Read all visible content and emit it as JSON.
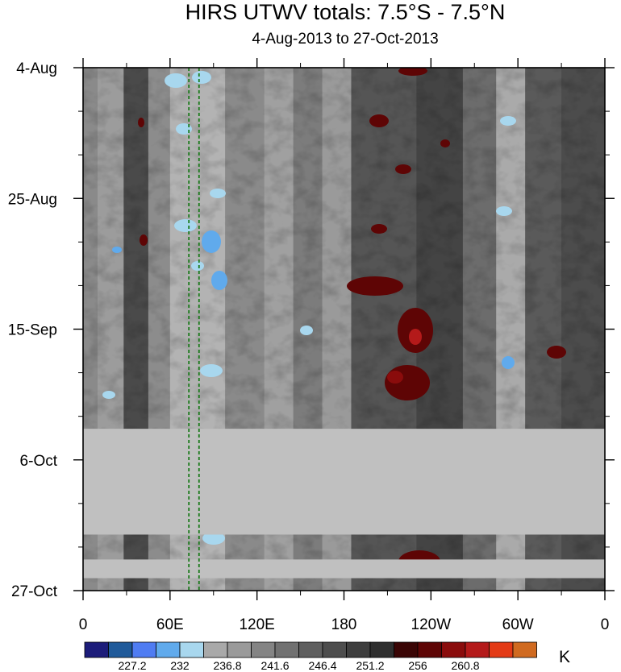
{
  "chart_data": {
    "type": "heatmap",
    "title": "HIRS UTWV totals: 7.5°S - 7.5°N",
    "subtitle": "4-Aug-2013 to 27-Oct-2013",
    "x_ticks": [
      {
        "lon": 0,
        "label": "0"
      },
      {
        "lon": 60,
        "label": "60E"
      },
      {
        "lon": 120,
        "label": "120E"
      },
      {
        "lon": 180,
        "label": "180"
      },
      {
        "lon": 240,
        "label": "120W"
      },
      {
        "lon": 300,
        "label": "60W"
      },
      {
        "lon": 360,
        "label": "0"
      }
    ],
    "xlim": [
      0,
      360
    ],
    "y_ticks": [
      {
        "day": 0,
        "label": "4-Aug"
      },
      {
        "day": 21,
        "label": "25-Aug"
      },
      {
        "day": 42,
        "label": "15-Sep"
      },
      {
        "day": 63,
        "label": "6-Oct"
      },
      {
        "day": 84,
        "label": "27-Oct"
      }
    ],
    "ylim_days": [
      0,
      84
    ],
    "missing_periods_days": [
      [
        58,
        75
      ],
      [
        79,
        82
      ]
    ],
    "reference_lines_lon": [
      73,
      80
    ],
    "colorbar": {
      "colors": [
        "#1c1c7a",
        "#1f5a9a",
        "#4f7cf2",
        "#60aaec",
        "#a8d7ee",
        "#a9a9a9",
        "#9a9a9a",
        "#848484",
        "#717171",
        "#5f5f5f",
        "#4d4d4d",
        "#3e3e3e",
        "#2f2f2f",
        "#3a0505",
        "#5e0505",
        "#8a0c0c",
        "#b41a1a",
        "#e33a16",
        "#d06a20"
      ],
      "labels": [
        {
          "after_box": 1,
          "text": "227.2"
        },
        {
          "after_box": 3,
          "text": "232"
        },
        {
          "after_box": 5,
          "text": "236.8"
        },
        {
          "after_box": 7,
          "text": "241.6"
        },
        {
          "after_box": 9,
          "text": "246.4"
        },
        {
          "after_box": 11,
          "text": "251.2"
        },
        {
          "after_box": 13,
          "text": "256"
        },
        {
          "after_box": 15,
          "text": "260.8"
        }
      ],
      "units": "K"
    },
    "missing_color": "#c0c0c0"
  }
}
